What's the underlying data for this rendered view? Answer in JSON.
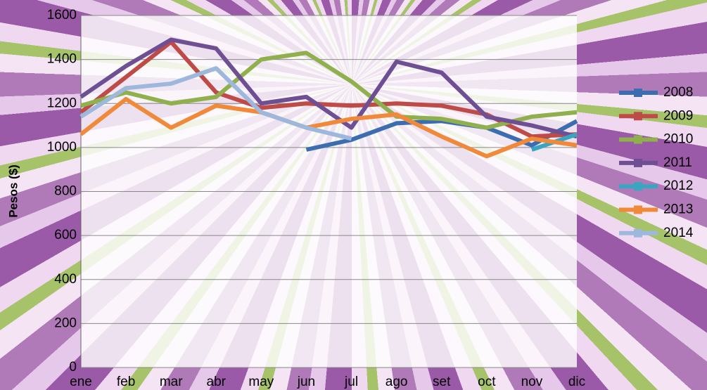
{
  "chart_data": {
    "type": "line",
    "y_label": "Pesos ($)",
    "categories": [
      "ene",
      "feb",
      "mar",
      "abr",
      "may",
      "jun",
      "jul",
      "ago",
      "set",
      "oct",
      "nov",
      "dic"
    ],
    "ylim": [
      0,
      1600
    ],
    "yticks": [
      0,
      200,
      400,
      600,
      800,
      1000,
      1200,
      1400,
      1600
    ],
    "grid": true,
    "legend": "right",
    "series": [
      {
        "name": "2008",
        "color": "#3c6db0",
        "values": [
          null,
          null,
          null,
          null,
          null,
          990,
          1035,
          1110,
          1120,
          1090,
          1010,
          1120
        ]
      },
      {
        "name": "2009",
        "color": "#be4b48",
        "values": [
          1160,
          1320,
          1480,
          1250,
          1180,
          1200,
          1190,
          1200,
          1190,
          1150,
          1050,
          1060
        ]
      },
      {
        "name": "2010",
        "color": "#8fb04c",
        "values": [
          1190,
          1250,
          1200,
          1230,
          1400,
          1430,
          1300,
          1140,
          1130,
          1090,
          1140,
          1160
        ]
      },
      {
        "name": "2011",
        "color": "#6f4f94",
        "values": [
          1230,
          1370,
          1490,
          1450,
          1200,
          1230,
          1090,
          1390,
          1340,
          1140,
          1100,
          1050
        ]
      },
      {
        "name": "2012",
        "color": "#3aa5c0",
        "values": [
          null,
          null,
          null,
          null,
          null,
          null,
          null,
          null,
          null,
          null,
          990,
          1060
        ]
      },
      {
        "name": "2013",
        "color": "#f08a3a",
        "values": [
          1060,
          1220,
          1090,
          1190,
          1160,
          1090,
          1130,
          1150,
          1050,
          960,
          1040,
          1010
        ]
      },
      {
        "name": "2014",
        "color": "#9db8dc",
        "values": [
          1140,
          1270,
          1290,
          1360,
          1160,
          1090,
          1040,
          null,
          null,
          null,
          null,
          null
        ]
      }
    ]
  }
}
